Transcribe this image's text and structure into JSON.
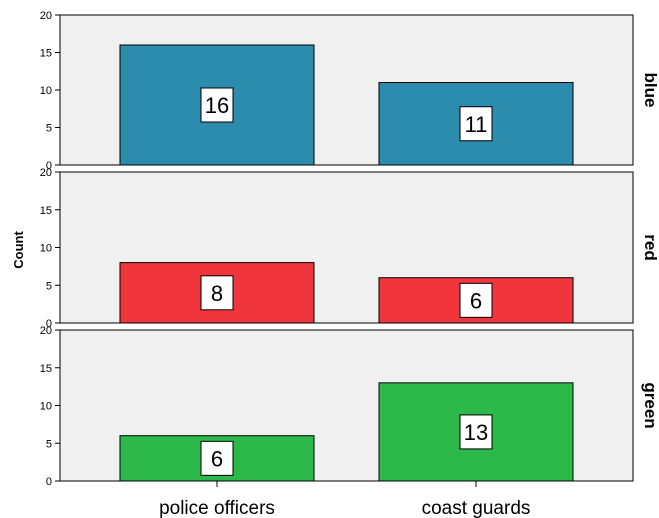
{
  "chart_data": {
    "type": "bar",
    "ylabel": "Count",
    "xlabel": "",
    "title": "",
    "categories": [
      "police officers",
      "coast guards"
    ],
    "ylim": [
      0,
      20
    ],
    "yticks": [
      0,
      5,
      10,
      15,
      20
    ],
    "grid": false,
    "panels": [
      {
        "name": "blue",
        "color": "#2b8cad",
        "values": [
          16,
          11
        ]
      },
      {
        "name": "red",
        "color": "#f0353c",
        "values": [
          8,
          6
        ]
      },
      {
        "name": "green",
        "color": "#2db84a",
        "values": [
          6,
          13
        ]
      }
    ]
  }
}
